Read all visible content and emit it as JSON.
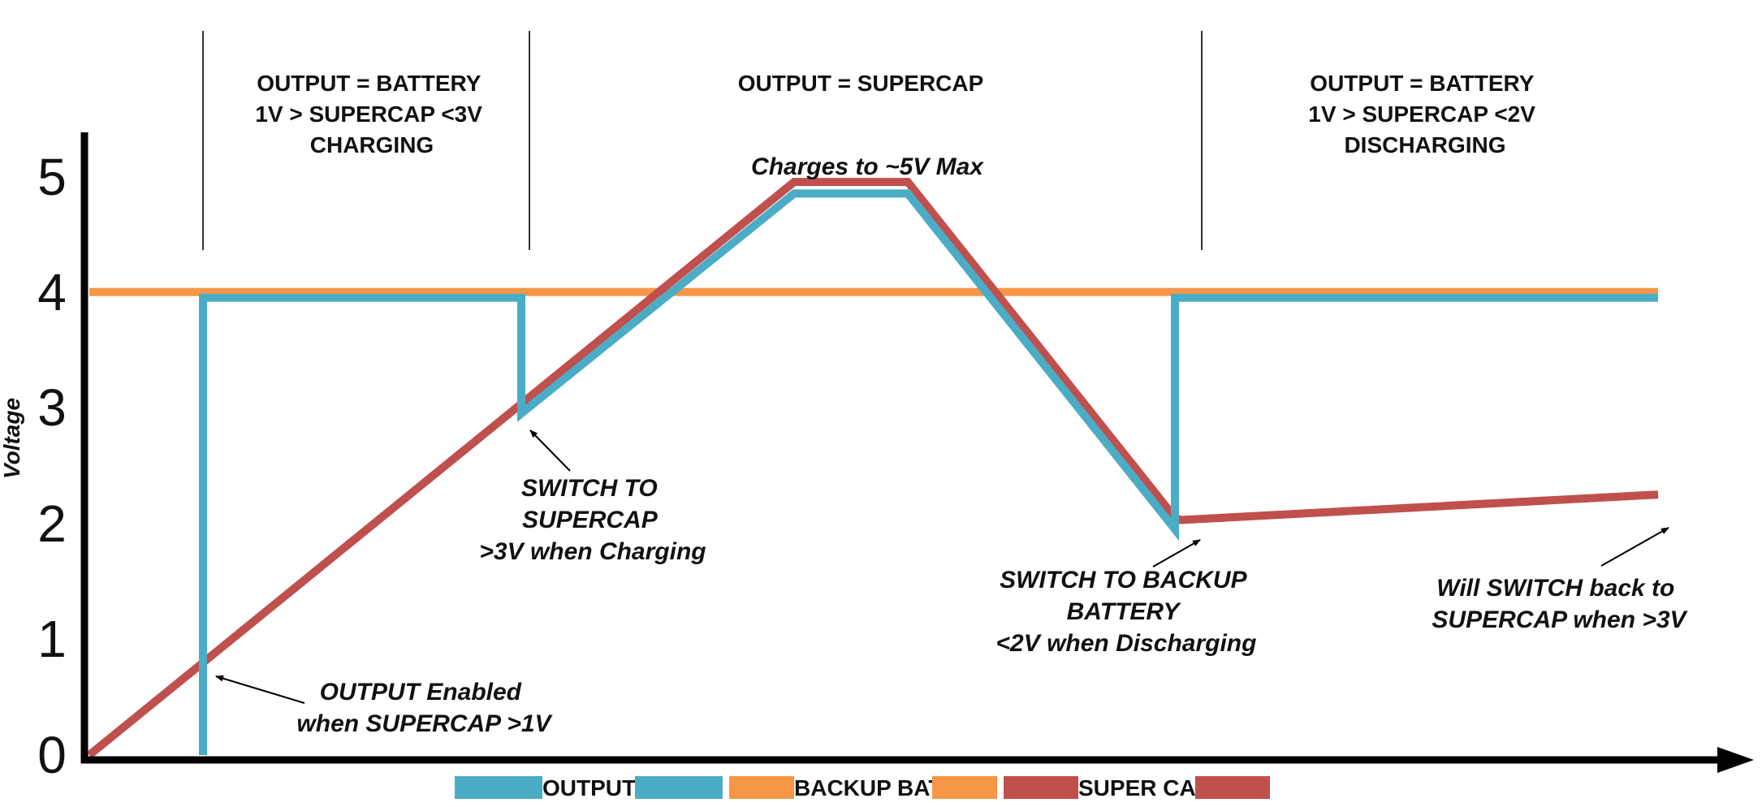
{
  "chart_data": {
    "type": "line",
    "title": "",
    "xlabel": "",
    "ylabel": "Voltage",
    "ylim": [
      0,
      5
    ],
    "yticks": [
      "0",
      "1",
      "2",
      "3",
      "4",
      "5"
    ],
    "xlim": [
      0,
      14
    ],
    "grid": false,
    "legend_position": "bottom",
    "series": [
      {
        "name": "OUTPUT",
        "color": "#4BACC6",
        "points": [
          [
            1,
            0
          ],
          [
            1,
            3.95
          ],
          [
            3.8,
            3.95
          ],
          [
            3.8,
            2.95
          ],
          [
            6.2,
            4.85
          ],
          [
            7.2,
            4.85
          ],
          [
            9.55,
            1.95
          ],
          [
            9.55,
            3.95
          ],
          [
            13.8,
            3.95
          ]
        ]
      },
      {
        "name": "BACKUP BAT",
        "color": "#F79646",
        "points": [
          [
            0,
            4
          ],
          [
            13.8,
            4
          ]
        ]
      },
      {
        "name": "SUPER CAP",
        "color": "#C0504D",
        "points": [
          [
            0,
            0
          ],
          [
            6.2,
            4.95
          ],
          [
            7.2,
            4.95
          ],
          [
            9.55,
            2.05
          ],
          [
            9.6,
            2.03
          ],
          [
            13.8,
            2.25
          ]
        ]
      }
    ],
    "regions": [
      {
        "lines": [
          "OUTPUT = BATTERY",
          "1V > SUPERCAP <3V",
          "CHARGING"
        ]
      },
      {
        "lines": [
          "OUTPUT = SUPERCAP"
        ]
      },
      {
        "lines": [
          "OUTPUT = BATTERY",
          "1V > SUPERCAP <2V",
          "DISCHARGING"
        ]
      }
    ],
    "annotations": [
      {
        "lines": [
          "Charges to ~5V Max"
        ]
      },
      {
        "lines": [
          "SWITCH TO",
          "SUPERCAP",
          ">3V when Charging"
        ]
      },
      {
        "lines": [
          "OUTPUT Enabled",
          "when SUPERCAP >1V"
        ]
      },
      {
        "lines": [
          "SWITCH TO BACKUP",
          "BATTERY",
          "<2V when Discharging"
        ]
      },
      {
        "lines": [
          "Will SWITCH back to",
          "SUPERCAP when >3V"
        ]
      }
    ],
    "legend": [
      "OUTPUT",
      "BACKUP BAT",
      "SUPER CAP"
    ]
  }
}
